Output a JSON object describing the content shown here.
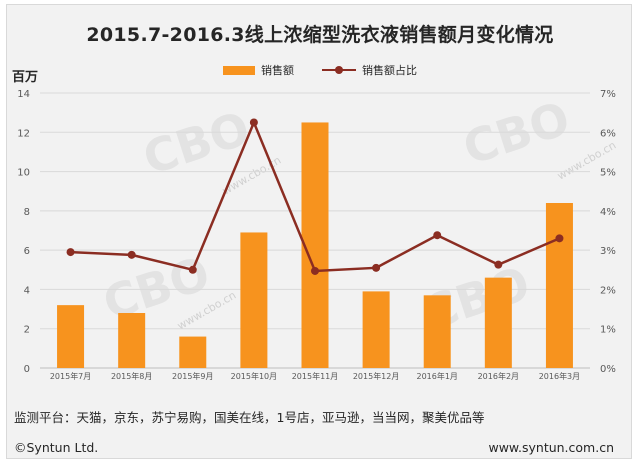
{
  "title": "2015.7-2016.3线上浓缩型洗衣液销售额月变化情况",
  "legend": {
    "bar_label": "销售额",
    "line_label": "销售额占比"
  },
  "source_note": "监测平台：天猫，京东，苏宁易购，国美在线，1号店，亚马逊，当当网，聚美优品等",
  "footer": {
    "copyright": "©Syntun Ltd.",
    "website": "www.syntun.com.cn"
  },
  "watermark": {
    "logo_text": "CBO",
    "url_text": "www.cbo.cn"
  },
  "colors": {
    "bar": "#f7931e",
    "line": "#8b2d22",
    "axis_text": "#595959",
    "grid": "#d9d9d9"
  },
  "chart_data": {
    "type": "bar",
    "categories": [
      "2015年7月",
      "2015年8月",
      "2015年9月",
      "2015年10月",
      "2015年11月",
      "2015年12月",
      "2016年1月",
      "2016年2月",
      "2016年3月"
    ],
    "series": [
      {
        "name": "销售额",
        "type": "bar",
        "axis": "left",
        "values": [
          3.2,
          2.8,
          1.6,
          6.9,
          12.5,
          3.9,
          3.7,
          4.6,
          8.4
        ]
      },
      {
        "name": "销售额占比",
        "type": "line",
        "axis": "right",
        "values": [
          2.95,
          2.88,
          2.5,
          6.25,
          2.47,
          2.55,
          3.38,
          2.63,
          3.3
        ]
      }
    ],
    "ylabel": "百万",
    "ylim": [
      0,
      14
    ],
    "yticks": [
      "0",
      "2",
      "4",
      "6",
      "8",
      "10",
      "12",
      "14"
    ],
    "y2lim": [
      0,
      7
    ],
    "y2ticks": [
      "0%",
      "1%",
      "2%",
      "3%",
      "4%",
      "5%",
      "6%",
      "7%"
    ],
    "grid": true,
    "legend_position": "top-center"
  }
}
